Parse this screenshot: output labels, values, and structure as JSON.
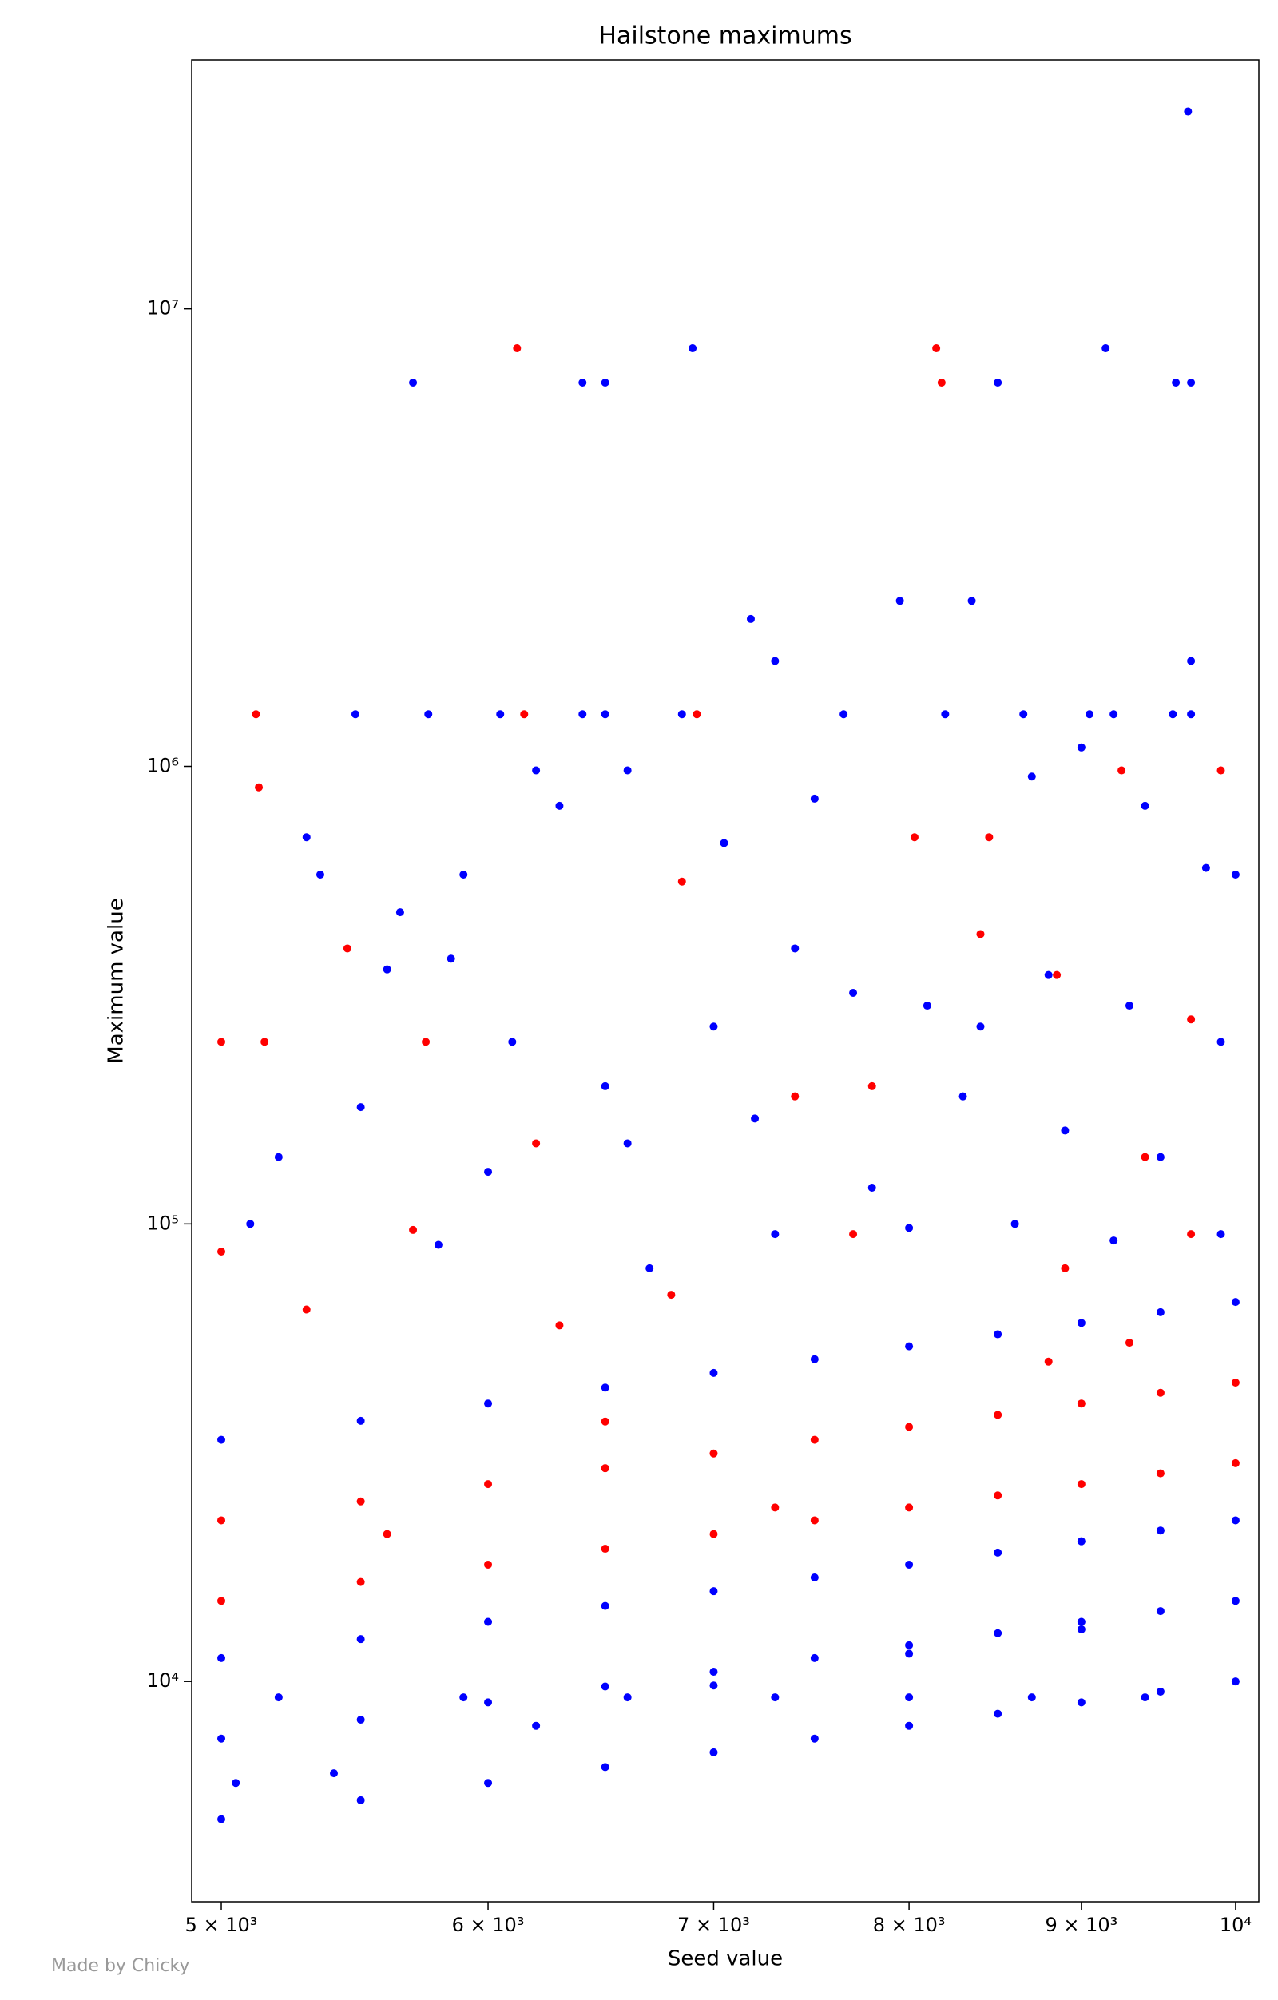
{
  "chart_data": {
    "type": "scatter",
    "title": "Hailstone maximums",
    "x_label": "Seed value",
    "y_label": "Maximum value",
    "xscale": "log",
    "yscale": "log",
    "grid": false,
    "xlim": [
      4900,
      10160
    ],
    "ylim": [
      3300,
      35000000
    ],
    "xticks": [
      {
        "value": 5000,
        "label": "5 × 10³"
      },
      {
        "value": 6000,
        "label": "6 × 10³"
      },
      {
        "value": 7000,
        "label": "7 × 10³"
      },
      {
        "value": 8000,
        "label": "8 × 10³"
      },
      {
        "value": 9000,
        "label": "9 × 10³"
      },
      {
        "value": 10000,
        "label": "10⁴"
      }
    ],
    "yticks": [
      {
        "value": 10000,
        "label": "10⁴"
      },
      {
        "value": 100000,
        "label": "10⁵"
      },
      {
        "value": 1000000,
        "label": "10⁶"
      },
      {
        "value": 10000000,
        "label": "10⁷"
      }
    ],
    "series": [
      {
        "color": "#0000ff",
        "x": [
          5000,
          5500,
          6000,
          6500,
          7000,
          7500,
          8000,
          8500,
          9000,
          9500,
          10000,
          5000,
          5500,
          6000,
          6500,
          7000,
          7500,
          8000,
          8500,
          9000,
          9500,
          10000,
          5000,
          5500,
          6000,
          6500,
          7000,
          7500,
          8000,
          8500,
          9000,
          9500,
          10000,
          5000,
          5500,
          6000,
          6500,
          7000,
          7500,
          8000,
          8500,
          9000,
          9500,
          10000,
          5200,
          5900,
          6600,
          7300,
          8000,
          8700,
          9400,
          5700,
          6400,
          6500,
          6900,
          8500,
          9150,
          9600,
          9700,
          9680,
          7950,
          8350,
          7180,
          7300,
          9700,
          5480,
          5760,
          6050,
          6400,
          6500,
          6850,
          7650,
          8200,
          8650,
          9050,
          9200,
          9580,
          9700,
          5300,
          6200,
          6600,
          8700,
          9000,
          5350,
          5900,
          6300,
          7050,
          7500,
          9400,
          9800,
          10000,
          5600,
          5650,
          5850,
          6100,
          6500,
          7000,
          7400,
          7700,
          8100,
          8400,
          8800,
          9300,
          9900,
          5200,
          5500,
          6000,
          6600,
          7200,
          7800,
          8300,
          8900,
          9500,
          5100,
          5800,
          6700,
          7300,
          8000,
          8600,
          9200,
          9900,
          5050,
          5400,
          6200,
          7000,
          8000,
          9000
        ],
        "values": [
          5000,
          5500,
          6000,
          6500,
          7000,
          7500,
          8000,
          8500,
          9000,
          9500,
          10000,
          7500,
          8250,
          9000,
          9750,
          10500,
          11250,
          12000,
          12750,
          13500,
          14250,
          15000,
          11250,
          12375,
          13500,
          14625,
          15750,
          16875,
          18000,
          19125,
          20250,
          21375,
          22500,
          33750,
          37125,
          40500,
          43875,
          47250,
          50625,
          54000,
          57375,
          60750,
          64125,
          67500,
          9232,
          9232,
          9232,
          9232,
          9232,
          9232,
          9232,
          6900000,
          6900000,
          6900000,
          8200000,
          6900000,
          8200000,
          6900000,
          6900000,
          27000000,
          2300000,
          2300000,
          2100000,
          1700000,
          1700000,
          1300000,
          1300000,
          1300000,
          1300000,
          1300000,
          1300000,
          1300000,
          1300000,
          1300000,
          1300000,
          1300000,
          1300000,
          1300000,
          700000,
          980000,
          980000,
          950000,
          1100000,
          580000,
          580000,
          820000,
          680000,
          850000,
          820000,
          600000,
          580000,
          360000,
          480000,
          380000,
          250000,
          200000,
          270000,
          400000,
          320000,
          300000,
          270000,
          350000,
          300000,
          250000,
          140000,
          180000,
          130000,
          150000,
          170000,
          120000,
          190000,
          160000,
          140000,
          100000,
          90000,
          80000,
          95000,
          98000,
          100000,
          92000,
          95000,
          6000,
          6300,
          8000,
          9800,
          11500,
          13000
        ]
      },
      {
        "color": "#ff0000",
        "x": [
          5000,
          5500,
          6000,
          6500,
          7000,
          7500,
          8000,
          8500,
          9000,
          9500,
          10000,
          5000,
          5500,
          6000,
          6500,
          7000,
          7500,
          8000,
          8500,
          9000,
          9500,
          10000,
          5120,
          5130,
          6120,
          8150,
          8180,
          6150,
          6920,
          8450,
          8030,
          9250,
          9900,
          6850,
          5000,
          5150,
          5450,
          5750,
          6200,
          7400,
          7800,
          8400,
          8850,
          9700,
          9400,
          5000,
          5300,
          5700,
          6300,
          6800,
          7700,
          8900,
          9700,
          5600,
          6500,
          7300,
          8800,
          9300
        ],
        "values": [
          15000,
          16500,
          18000,
          19500,
          21000,
          22500,
          24000,
          25500,
          27000,
          28500,
          30000,
          22500,
          24750,
          27000,
          29250,
          31500,
          33750,
          36000,
          38250,
          40500,
          42750,
          45000,
          1300000,
          900000,
          8200000,
          8200000,
          6900000,
          1300000,
          1300000,
          700000,
          700000,
          980000,
          980000,
          560000,
          250000,
          250000,
          400000,
          250000,
          150000,
          190000,
          200000,
          430000,
          350000,
          280000,
          140000,
          87000,
          65000,
          97000,
          60000,
          70000,
          95000,
          80000,
          95000,
          21000,
          37000,
          24000,
          50000,
          55000
        ]
      }
    ]
  },
  "footer": {
    "credit": "Made by Chicky"
  }
}
